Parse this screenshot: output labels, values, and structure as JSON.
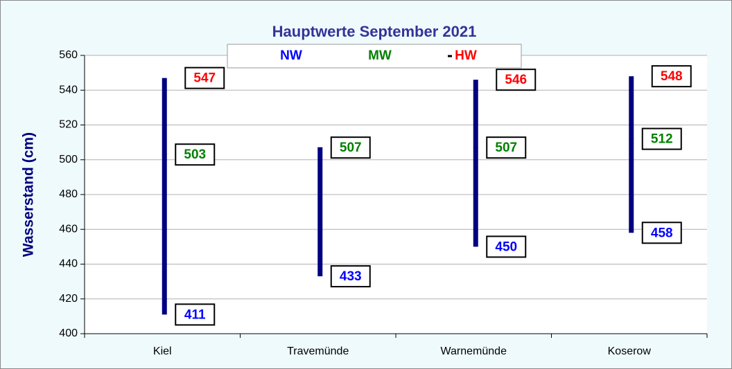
{
  "chart_data": {
    "type": "hilo",
    "title": "Hauptwerte September 2021",
    "y_label": "Wasserstand (cm)",
    "categories": [
      "Kiel",
      "Travemünde",
      "Warnemünde",
      "Koserow"
    ],
    "series": [
      {
        "name": "NW",
        "color": "#0000ff",
        "values": [
          411,
          433,
          450,
          458
        ]
      },
      {
        "name": "MW",
        "color": "#008000",
        "values": [
          503,
          507,
          507,
          512
        ]
      },
      {
        "name": "HW",
        "color": "#ff0000",
        "values": [
          547,
          507,
          546,
          548
        ],
        "value_labels": [
          "547",
          null,
          "546",
          "548"
        ]
      }
    ],
    "bar_color": "#000080",
    "ylim": [
      400,
      560
    ],
    "yticks": [
      400,
      420,
      440,
      460,
      480,
      500,
      520,
      540,
      560
    ],
    "grid": true
  }
}
